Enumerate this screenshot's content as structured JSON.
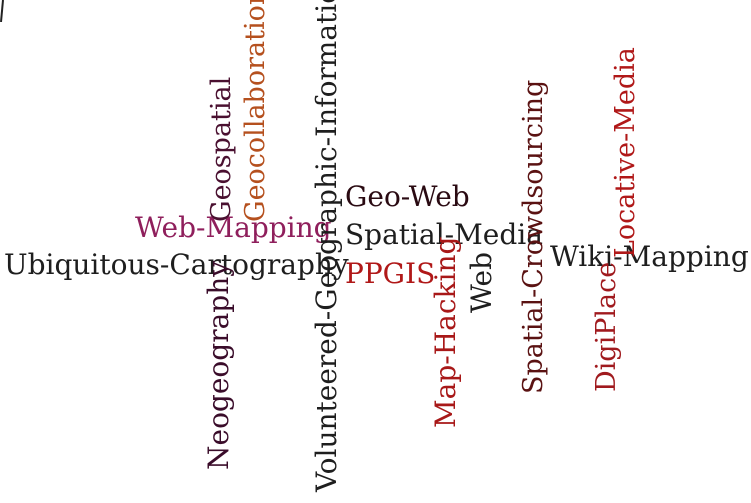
{
  "colors": {
    "black": "#1c1c1c",
    "dark_red": "#5a1010",
    "red": "#a8181c",
    "crimson": "#9a1a1f",
    "magenta": "#8a1f5a",
    "rust": "#b0431c",
    "plum": "#3c0f2c"
  },
  "cloud": {
    "words": [
      {
        "id": "ubiquitous-cartography",
        "text": "Ubiquitous-Cartography",
        "color": "#1e1e1e"
      },
      {
        "id": "web-mapping",
        "text": "Web-Mapping",
        "color": "#8f1f5c"
      },
      {
        "id": "geospatial",
        "text": "Geospatial",
        "color": "#4a1030"
      },
      {
        "id": "geocollaboration",
        "text": "Geocollaboration",
        "color": "#b5501e"
      },
      {
        "id": "neogeography",
        "text": "Neogeography",
        "color": "#3a0c2a"
      },
      {
        "id": "volunteered-geographic-information",
        "text": "Volunteered-Geographic-Information",
        "color": "#1e1e1e"
      },
      {
        "id": "geo-web",
        "text": "Geo-Web",
        "color": "#2a0a12"
      },
      {
        "id": "spatial-media",
        "text": "Spatial-Media",
        "color": "#1e1e1e"
      },
      {
        "id": "ppgis",
        "text": "PPGIS",
        "color": "#b01818"
      },
      {
        "id": "map-hacking",
        "text": "Map-Hacking",
        "color": "#a81818"
      },
      {
        "id": "web",
        "text": "Web",
        "color": "#1e1e1e"
      },
      {
        "id": "spatial-crowdsourcing",
        "text": "Spatial-Crowdsourcing",
        "color": "#5a1212"
      },
      {
        "id": "wiki-mapping",
        "text": "Wiki-Mapping",
        "color": "#1e1e1e"
      },
      {
        "id": "locative-media",
        "text": "Locative-Media",
        "color": "#b01818"
      },
      {
        "id": "digiplace",
        "text": "DigiPlace",
        "color": "#a01a1e"
      }
    ]
  }
}
